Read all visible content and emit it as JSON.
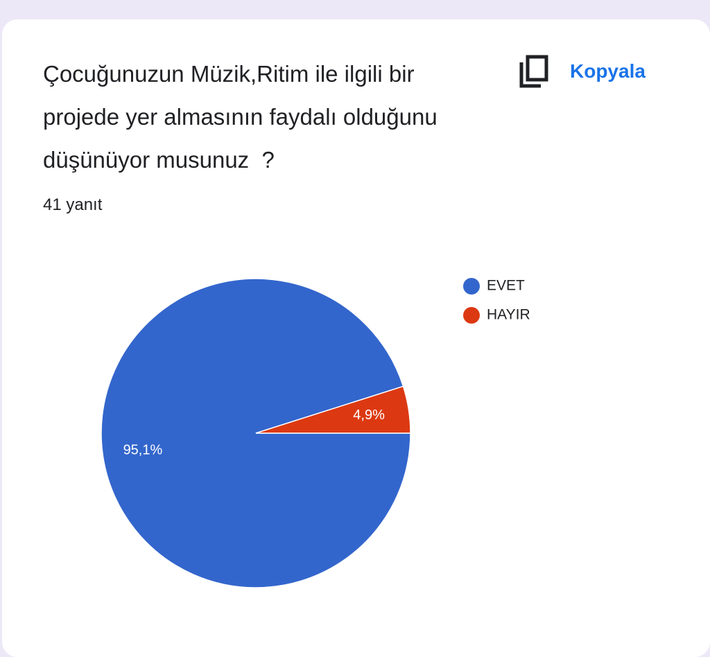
{
  "header": {
    "title": "Çocuğunuzun Müzik,Ritim ile ilgili bir projede yer almasının faydalı olduğunu düşünüyor musunuz  ?",
    "responses": "41 yanıt",
    "copy_button": "Kopyala"
  },
  "chart_data": {
    "type": "pie",
    "categories": [
      "EVET",
      "HAYIR"
    ],
    "values": [
      95.1,
      4.9
    ],
    "value_labels": [
      "95,1%",
      "4,9%"
    ],
    "colors": [
      "#3366cc",
      "#dc3912"
    ],
    "legend": "top-right"
  }
}
